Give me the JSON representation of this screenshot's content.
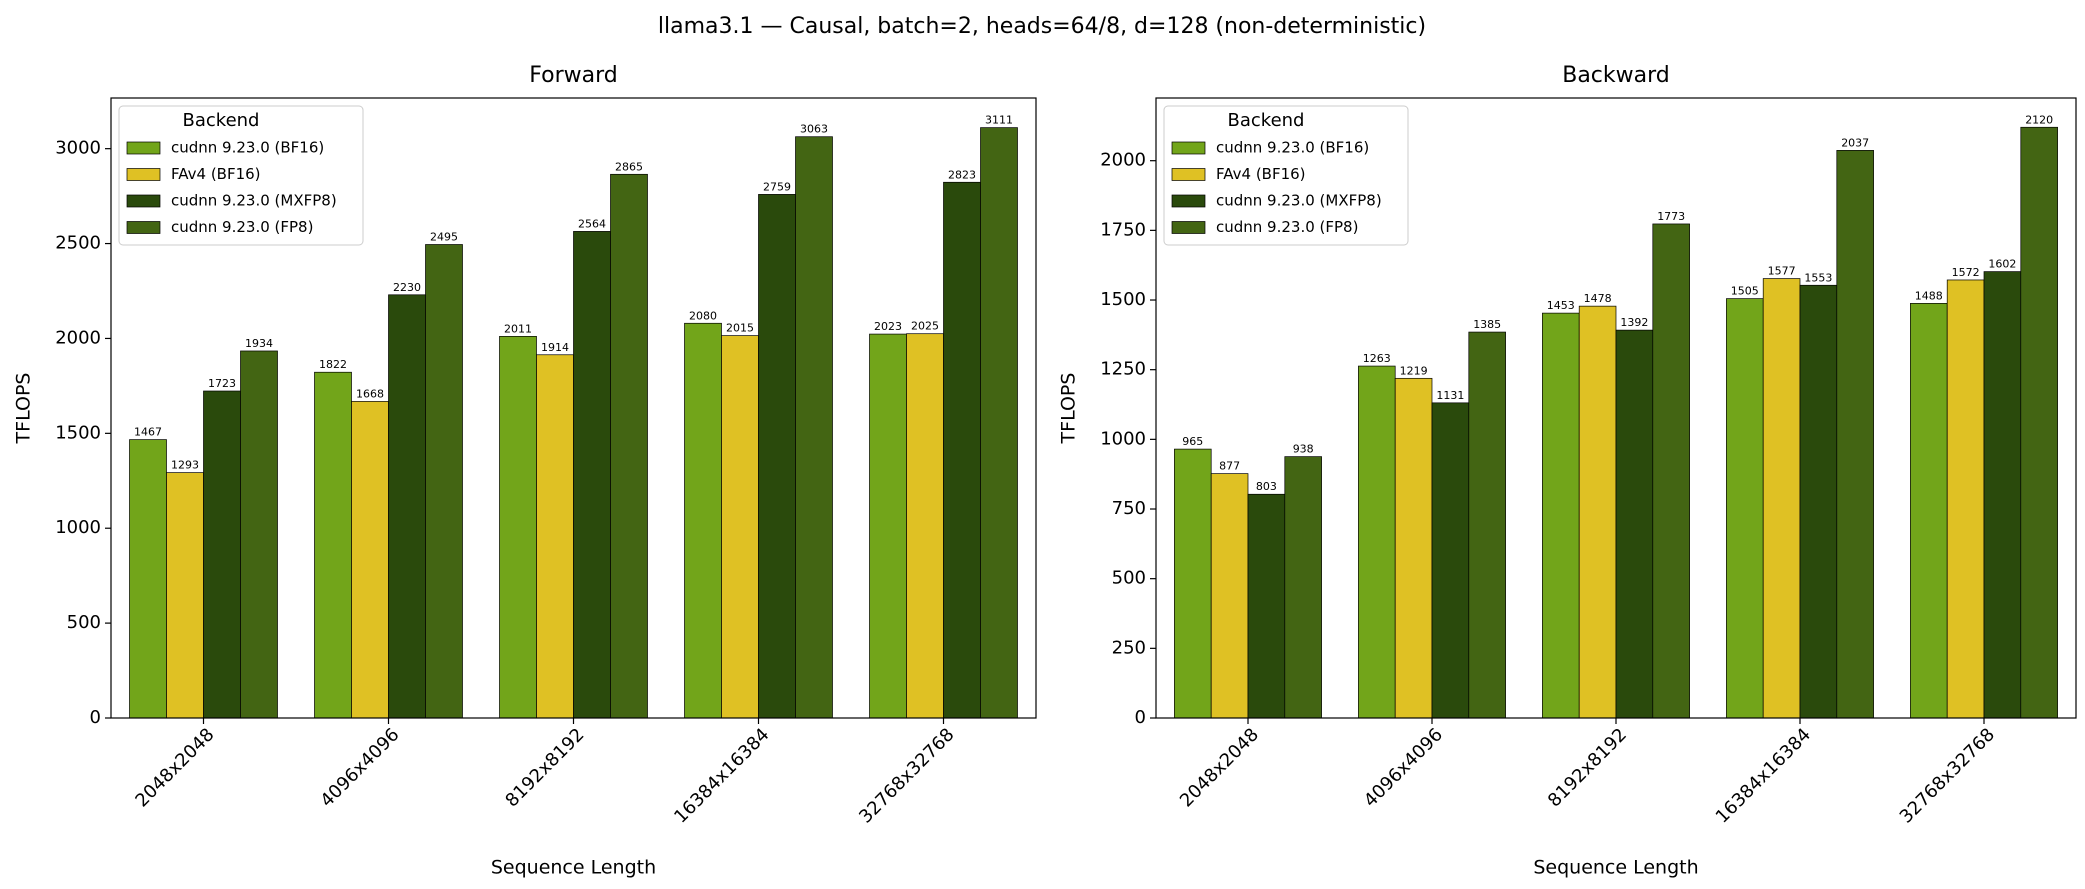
{
  "title": "llama3.1 — Causal, batch=2, heads=64/8, d=128 (non-deterministic)",
  "chart_data": [
    {
      "type": "bar",
      "title": "Forward",
      "x_label": "Sequence Length",
      "y_label": "TFLOPS",
      "legend_title": "Backend",
      "legend": "upper left",
      "categories": [
        "2048x2048",
        "4096x4096",
        "8192x8192",
        "16384x16384",
        "32768x32768"
      ],
      "series": [
        {
          "name": "cudnn 9.23.0 (BF16)",
          "color": "#72a51a",
          "values": [
            1467,
            1822,
            2011,
            2080,
            2023
          ]
        },
        {
          "name": "FAv4 (BF16)",
          "color": "#dfc124",
          "values": [
            1293,
            1668,
            1914,
            2015,
            2025
          ]
        },
        {
          "name": "cudnn 9.23.0 (MXFP8)",
          "color": "#2a4a0c",
          "values": [
            1723,
            2230,
            2564,
            2759,
            2823
          ]
        },
        {
          "name": "cudnn 9.23.0 (FP8)",
          "color": "#436513",
          "values": [
            1934,
            2495,
            2865,
            3063,
            3111
          ]
        }
      ],
      "ylim": [
        0,
        3267
      ],
      "yticks": [
        0,
        500,
        1000,
        1500,
        2000,
        2500,
        3000
      ]
    },
    {
      "type": "bar",
      "title": "Backward",
      "x_label": "Sequence Length",
      "y_label": "TFLOPS",
      "legend_title": "Backend",
      "legend": "upper left",
      "categories": [
        "2048x2048",
        "4096x4096",
        "8192x8192",
        "16384x16384",
        "32768x32768"
      ],
      "series": [
        {
          "name": "cudnn 9.23.0 (BF16)",
          "color": "#72a51a",
          "values": [
            965,
            1263,
            1453,
            1505,
            1488
          ]
        },
        {
          "name": "FAv4 (BF16)",
          "color": "#dfc124",
          "values": [
            877,
            1219,
            1478,
            1577,
            1572
          ]
        },
        {
          "name": "cudnn 9.23.0 (MXFP8)",
          "color": "#2a4a0c",
          "values": [
            803,
            1131,
            1392,
            1553,
            1602
          ]
        },
        {
          "name": "cudnn 9.23.0 (FP8)",
          "color": "#436513",
          "values": [
            938,
            1385,
            1773,
            2037,
            2120
          ]
        }
      ],
      "ylim": [
        0,
        2225
      ],
      "yticks": [
        0,
        250,
        500,
        750,
        1000,
        1250,
        1500,
        1750,
        2000
      ]
    }
  ]
}
